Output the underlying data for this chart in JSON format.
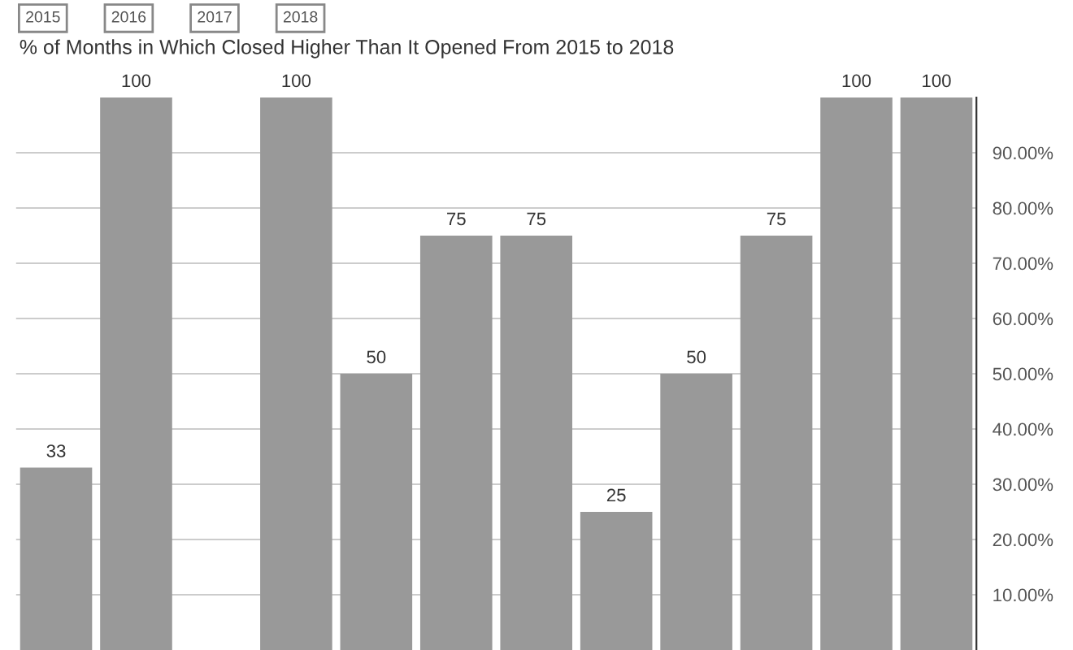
{
  "chart_data": {
    "type": "bar",
    "title": "% of Months in Which Closed Higher Than It Opened From 2015 to 2018",
    "annotations": [
      "2015",
      "2016",
      "2017",
      "2018"
    ],
    "categories": [
      null,
      null,
      null,
      null,
      null,
      null,
      null,
      null,
      null,
      null,
      null,
      null
    ],
    "values": [
      33,
      100,
      null,
      100,
      50,
      75,
      75,
      25,
      50,
      75,
      100,
      100
    ],
    "value_labels": [
      "33",
      "100",
      null,
      "100",
      "50",
      "75",
      "75",
      "25",
      "50",
      "75",
      "100",
      "100"
    ],
    "color": "#999999",
    "ylim": [
      0,
      100
    ],
    "yticks": [
      {
        "value": 10,
        "label": "10.00%"
      },
      {
        "value": 20,
        "label": "20.00%"
      },
      {
        "value": 30,
        "label": "30.00%"
      },
      {
        "value": 40,
        "label": "40.00%"
      },
      {
        "value": 50,
        "label": "50.00%"
      },
      {
        "value": 60,
        "label": "60.00%"
      },
      {
        "value": 70,
        "label": "70.00%"
      },
      {
        "value": 80,
        "label": "80.00%"
      },
      {
        "value": 90,
        "label": "90.00%"
      }
    ],
    "grid": "y",
    "tick_labels": "y"
  }
}
